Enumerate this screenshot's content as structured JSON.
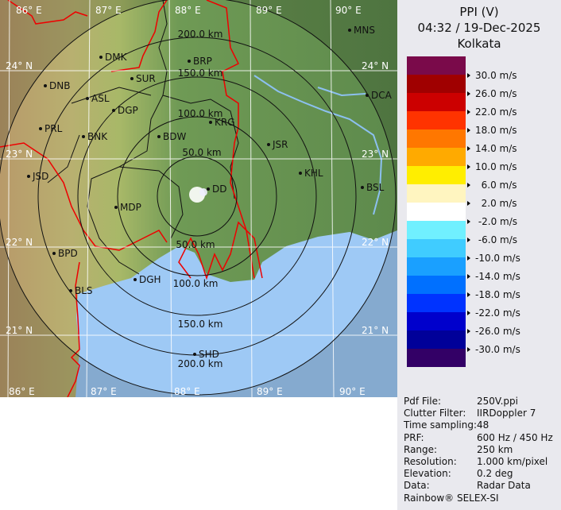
{
  "header": {
    "product": "PPI (V)",
    "datetime": "04:32 / 19-Dec-2025",
    "site": "Kolkata"
  },
  "legend": {
    "unit": "m/s",
    "colors": [
      "#7a0a4a",
      "#a00000",
      "#cc0000",
      "#ff3300",
      "#ff7700",
      "#ffaa00",
      "#ffee00",
      "#fff5c0",
      "#ffffff",
      "#70f0ff",
      "#40ccff",
      "#1aa0ff",
      "#0070ff",
      "#0033ff",
      "#0000cc",
      "#000099",
      "#330066"
    ],
    "labels": [
      "30.0 m/s",
      "26.0 m/s",
      "22.0 m/s",
      "18.0 m/s",
      "14.0 m/s",
      "10.0 m/s",
      "  6.0 m/s",
      "  2.0 m/s",
      " -2.0 m/s",
      " -6.0 m/s",
      "-10.0 m/s",
      "-14.0 m/s",
      "-18.0 m/s",
      "-22.0 m/s",
      "-26.0 m/s",
      "-30.0 m/s"
    ]
  },
  "info": [
    {
      "key": "Pdf File:",
      "value": "250V.ppi"
    },
    {
      "key": "Clutter Filter:",
      "value": "IIRDoppler 7"
    },
    {
      "key": "Time sampling:",
      "value": "48"
    },
    {
      "key": "PRF:",
      "value": "600 Hz / 450 Hz"
    },
    {
      "key": "Range:",
      "value": "250 km"
    },
    {
      "key": "Resolution:",
      "value": "1.000 km/pixel"
    },
    {
      "key": "Elevation:",
      "value": "0.2 deg"
    },
    {
      "key": "Data:",
      "value": "Radar Data"
    }
  ],
  "footer": "Rainbow® SELEX-SI",
  "map": {
    "lon_labels": [
      "86° E",
      "87° E",
      "88° E",
      "89° E",
      "90° E"
    ],
    "lat_labels": [
      "24° N",
      "23° N",
      "22° N",
      "21° N"
    ],
    "range_rings_km": [
      50,
      100,
      150,
      200,
      250
    ],
    "ring_labels": [
      "50.0 km",
      "100.0 km",
      "150.0 km",
      "200.0 km"
    ],
    "stations": [
      "MNS",
      "DMK",
      "BRP",
      "DNB",
      "SUR",
      "ASL",
      "DGP",
      "DCA",
      "PRL",
      "BNK",
      "KRG",
      "BDW",
      "JSR",
      "JSD",
      "KHL",
      "BSL",
      "MDP",
      "DD",
      "BPD",
      "DGH",
      "BLS",
      "SHD"
    ]
  }
}
